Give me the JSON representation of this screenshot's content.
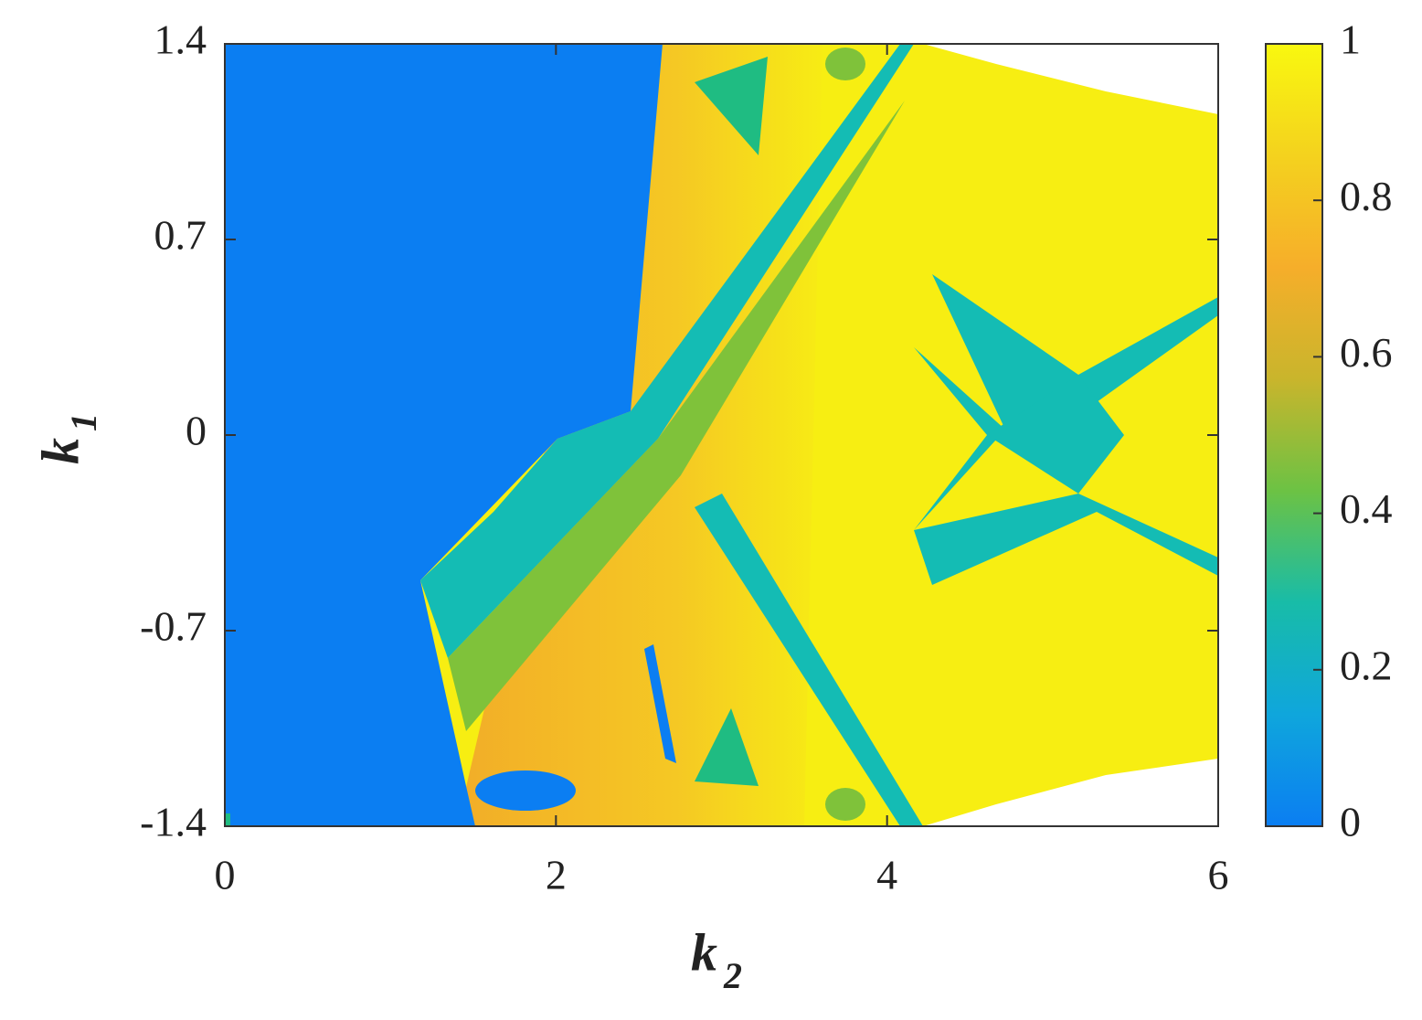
{
  "chart_data": {
    "type": "heatmap",
    "x_label": {
      "symbol": "k",
      "subscript": "2"
    },
    "y_label": {
      "symbol": "k",
      "subscript": "1"
    },
    "xlim": [
      0,
      6
    ],
    "xticks": [
      0,
      2,
      4,
      6
    ],
    "ylim": [
      -1.4,
      1.4
    ],
    "yticks": [
      -1.4,
      -0.7,
      0,
      0.7,
      1.4
    ],
    "colorbar": {
      "lim": [
        0,
        1
      ],
      "ticks": [
        0,
        0.2,
        0.4,
        0.6,
        0.8,
        1
      ],
      "colors": [
        "#0b7ef2",
        "#0fa6dc",
        "#18bca8",
        "#6cc244",
        "#c9b52c",
        "#f6ae2a",
        "#f4d21e",
        "#f9f80f"
      ]
    }
  }
}
